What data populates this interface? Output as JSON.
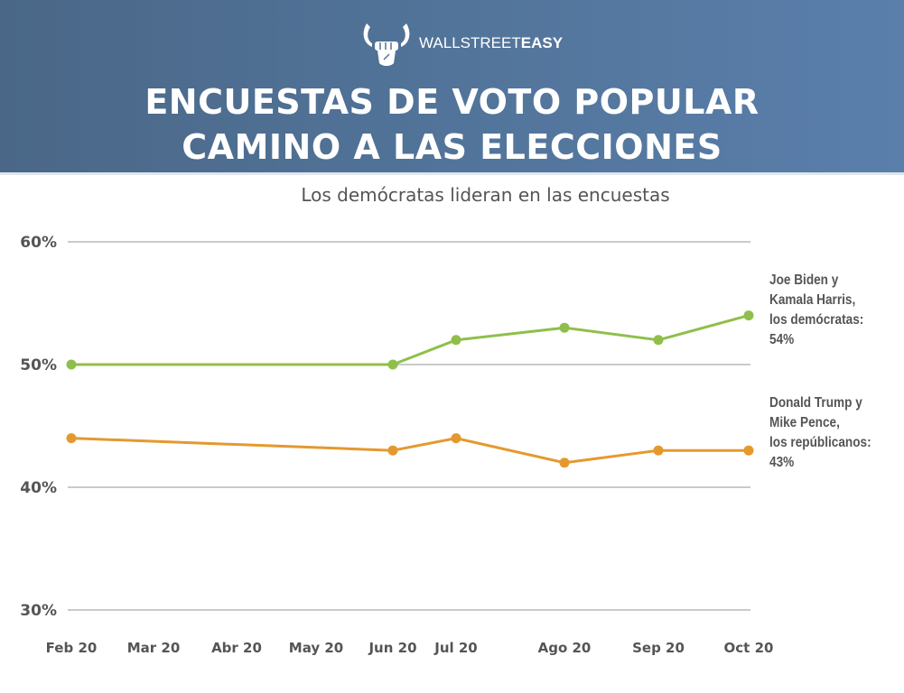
{
  "header": {
    "logo": {
      "icon": "bull-fist-icon",
      "text_thin": "WALLSTREET",
      "text_bold": "EASY"
    },
    "title_line1": "ENCUESTAS DE VOTO POPULAR",
    "title_line2": "CAMINO A LAS ELECCIONES"
  },
  "colors": {
    "header_bg_start": "#4a6787",
    "header_bg_end": "#5a7fab",
    "democrats": "#8fbf4a",
    "republicans": "#e4992f",
    "gridline": "#aaaaaa",
    "text": "#555555"
  },
  "legend": {
    "democrats": [
      "Joe Biden y",
      "Kamala Harris,",
      "los demócratas:",
      "54%"
    ],
    "republicans": [
      "Donald Trump y",
      "Mike Pence,",
      "los repúblicanos:",
      "43%"
    ]
  },
  "chart_data": {
    "type": "line",
    "title": "Los demócratas lideran en las encuestas",
    "xlabel": "",
    "ylabel": "",
    "x_tick_labels": [
      "Feb 20",
      "Mar 20",
      "Abr 20",
      "May 20",
      "Jun 20",
      "Jul 20",
      "Ago 20",
      "Sep 20",
      "Oct 20"
    ],
    "y_tick_labels": [
      "60%",
      "50%",
      "40%",
      "30%"
    ],
    "y_ticks": [
      60,
      50,
      40,
      30
    ],
    "ylim": [
      30,
      60
    ],
    "grid": true,
    "legend_position": "right",
    "series": [
      {
        "name": "Joe Biden y Kamala Harris, los demócratas",
        "color": "#8fbf4a",
        "x": [
          "Feb 20",
          "Jun 20",
          "Jul 20",
          "Ago 20",
          "Sep 20",
          "Oct 20"
        ],
        "values": [
          50,
          50,
          52,
          53,
          52,
          54
        ]
      },
      {
        "name": "Donald Trump y Mike Pence, los repúblicanos",
        "color": "#e4992f",
        "x": [
          "Feb 20",
          "Jun 20",
          "Jul 20",
          "Ago 20",
          "Sep 20",
          "Oct 20"
        ],
        "values": [
          44,
          43,
          44,
          42,
          43,
          43
        ]
      }
    ]
  }
}
